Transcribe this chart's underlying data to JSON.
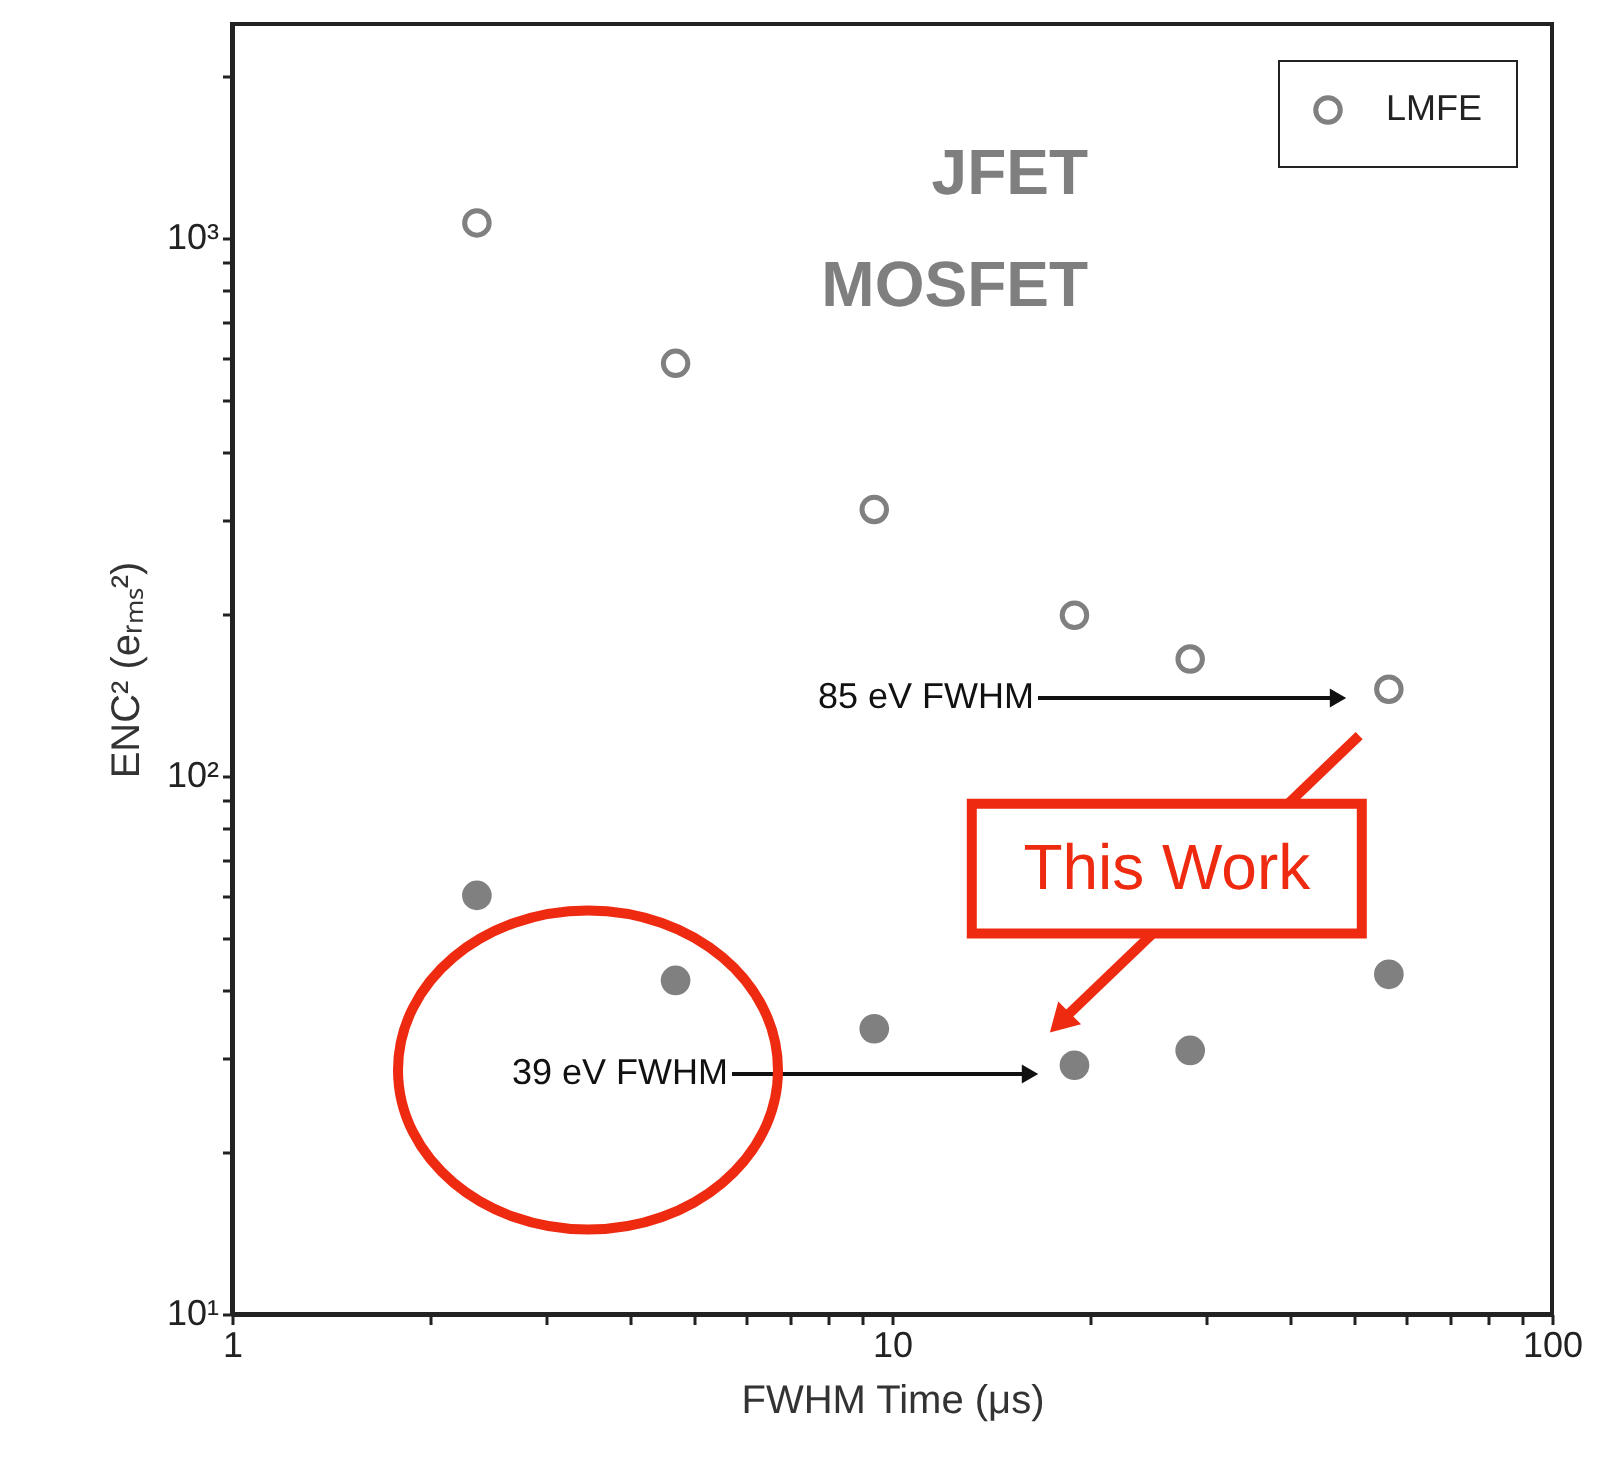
{
  "chart_data": {
    "type": "scatter",
    "xlabel": "FWHM Time (μs)",
    "ylabel": "ENC² (eᵣₘₛ²)",
    "log": "xy",
    "marker": "circle",
    "legend": "top right",
    "grid": false,
    "xlim": [
      1,
      100
    ],
    "ylim": [
      10,
      2500
    ],
    "xticks": [
      1,
      {
        "value": 2,
        "label": null
      },
      {
        "value": 3,
        "label": null
      },
      {
        "value": 4,
        "label": null
      },
      {
        "value": 5,
        "label": null
      },
      {
        "value": 6,
        "label": null
      },
      {
        "value": 7,
        "label": null
      },
      {
        "value": 8,
        "label": null
      },
      {
        "value": 9,
        "label": null
      },
      10,
      {
        "value": 20,
        "label": null
      },
      {
        "value": 30,
        "label": null
      },
      {
        "value": 40,
        "label": null
      },
      {
        "value": 50,
        "label": null
      },
      {
        "value": 60,
        "label": null
      },
      {
        "value": 70,
        "label": null
      },
      {
        "value": 80,
        "label": null
      },
      {
        "value": 90,
        "label": null
      },
      100
    ],
    "yticks": [
      {
        "value": 10,
        "label": "10¹"
      },
      {
        "value": 20,
        "label": null
      },
      {
        "value": 30,
        "label": null
      },
      {
        "value": 40,
        "label": null
      },
      {
        "value": 50,
        "label": null
      },
      {
        "value": 60,
        "label": null
      },
      {
        "value": 70,
        "label": null
      },
      {
        "value": 80,
        "label": null
      },
      {
        "value": 90,
        "label": null
      },
      {
        "value": 100,
        "label": "10²"
      },
      {
        "value": 200,
        "label": null
      },
      {
        "value": 300,
        "label": null
      },
      {
        "value": 400,
        "label": null
      },
      {
        "value": 500,
        "label": null
      },
      {
        "value": 600,
        "label": null
      },
      {
        "value": 700,
        "label": null
      },
      {
        "value": 800,
        "label": null
      },
      {
        "value": 900,
        "label": null
      },
      {
        "value": 1000,
        "label": "10³"
      },
      {
        "value": 2000,
        "label": null
      }
    ],
    "x": [
      2.35,
      4.7,
      9.4,
      18.9,
      28.3,
      56.6
    ],
    "series": [
      {
        "name": "LMFE",
        "color": "#808080",
        "values": [
          1067,
          585,
          313,
          199,
          165,
          145
        ]
      },
      {
        "color": "#808080",
        "values": [
          60,
          41.7,
          33.9,
          29,
          30.9,
          42.8
        ]
      }
    ],
    "annotations": [
      "JFET",
      "MOSFET",
      "85 eV FWHM",
      "39 eV FWHM",
      {
        "text": "This Work",
        "x": 18.9,
        "y": 29
      }
    ]
  }
}
